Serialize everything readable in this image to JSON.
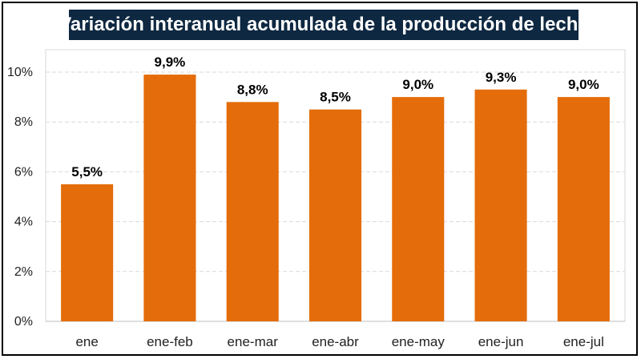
{
  "chart_data": {
    "type": "bar",
    "title": "Variación interanual acumulada de la producción de leche",
    "categories": [
      "ene",
      "ene-feb",
      "ene-mar",
      "ene-abr",
      "ene-may",
      "ene-jun",
      "ene-jul"
    ],
    "values": [
      5.5,
      9.9,
      8.8,
      8.5,
      9.0,
      9.3,
      9.0
    ],
    "data_labels": [
      "5,5%",
      "9,9%",
      "8,8%",
      "8,5%",
      "9,0%",
      "9,3%",
      "9,0%"
    ],
    "yticks": [
      0,
      2,
      4,
      6,
      8,
      10
    ],
    "ytick_labels": [
      "0%",
      "2%",
      "4%",
      "6%",
      "8%",
      "10%"
    ],
    "ylim": [
      0,
      10.9
    ],
    "xlabel": "",
    "ylabel": "",
    "grid": true,
    "bar_color": "#e46c0a",
    "grid_color": "#d9d9d9",
    "title_bg": "#0e2841"
  }
}
